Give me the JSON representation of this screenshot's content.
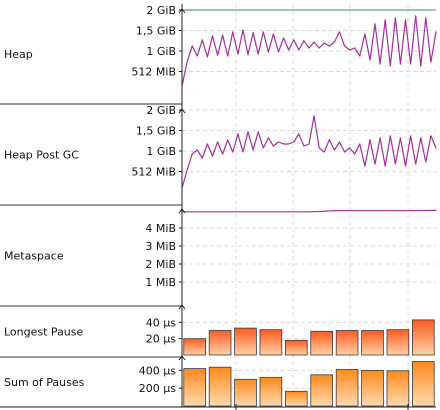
{
  "colors": {
    "line": "#a4309c",
    "limit": "#2e8b57",
    "bar_top": "#ff5a1f",
    "bar_bottom": "#ffd2a8",
    "bar2_top": "#ff8a1a",
    "bar2_bottom": "#ffd9b0",
    "bar_stroke": "#3a3a3a",
    "grid": "#d8d8d8",
    "divider": "#333333",
    "background": "#ffffff",
    "lane_bg": "#f8f8f8"
  },
  "chart_data": [
    {
      "type": "line",
      "lane": "Heap",
      "y_unit": "MiB",
      "ylim": [
        0,
        2048
      ],
      "y_ticks": [
        {
          "value": 2048,
          "label": "2 GiB"
        },
        {
          "value": 1536,
          "label": "1,5 GiB"
        },
        {
          "value": 1024,
          "label": "1 GiB"
        },
        {
          "value": 512,
          "label": "512 MiB"
        }
      ],
      "limit_line": 2048,
      "x": [
        0,
        2,
        4,
        6,
        8,
        10,
        12,
        14,
        16,
        18,
        20,
        22,
        24,
        26,
        28,
        30,
        32,
        34,
        36,
        38,
        40,
        42,
        44,
        46,
        48,
        50,
        52,
        54,
        56,
        58,
        60,
        62,
        64,
        66,
        68,
        70,
        72,
        74,
        76,
        78,
        80,
        82,
        84,
        86,
        88,
        90,
        92,
        94,
        96,
        98,
        100
      ],
      "values": [
        150,
        750,
        1150,
        900,
        1300,
        880,
        1400,
        920,
        1420,
        900,
        1500,
        950,
        1550,
        930,
        1480,
        950,
        1500,
        1000,
        1450,
        1000,
        1350,
        1050,
        1300,
        1050,
        1280,
        1100,
        1250,
        1100,
        1220,
        1150,
        1250,
        1500,
        1150,
        1050,
        1100,
        900,
        1450,
        800,
        1700,
        700,
        1800,
        650,
        1850,
        700,
        1800,
        700,
        1900,
        650,
        1850,
        750,
        1500
      ]
    },
    {
      "type": "line",
      "lane": "Heap Post GC",
      "y_unit": "MiB",
      "ylim": [
        0,
        2048
      ],
      "y_ticks": [
        {
          "value": 2048,
          "label": "2 GiB"
        },
        {
          "value": 1536,
          "label": "1,5 GiB"
        },
        {
          "value": 1024,
          "label": "1 GiB"
        },
        {
          "value": 512,
          "label": "512 MiB"
        }
      ],
      "x": [
        0,
        2,
        4,
        6,
        8,
        10,
        12,
        14,
        16,
        18,
        20,
        22,
        24,
        26,
        28,
        30,
        32,
        34,
        36,
        38,
        40,
        42,
        44,
        46,
        48,
        50,
        52,
        54,
        56,
        58,
        60,
        62,
        64,
        66,
        68,
        70,
        72,
        74,
        76,
        78,
        80,
        82,
        84,
        86,
        88,
        90,
        92,
        94,
        96,
        98,
        100
      ],
      "values": [
        100,
        550,
        950,
        1050,
        850,
        1200,
        900,
        1250,
        950,
        1300,
        1000,
        1450,
        1000,
        1500,
        1050,
        1500,
        1100,
        1350,
        1150,
        1250,
        1200,
        1200,
        1250,
        1450,
        1150,
        1200,
        1900,
        1100,
        1000,
        1300,
        1050,
        1250,
        1000,
        1100,
        950,
        1200,
        650,
        1300,
        700,
        1350,
        650,
        1400,
        700,
        1350,
        650,
        1400,
        700,
        1350,
        750,
        1400,
        1100
      ]
    },
    {
      "type": "line",
      "lane": "Metaspace",
      "y_unit": "MiB",
      "ylim": [
        0,
        5
      ],
      "y_ticks": [
        {
          "value": 4,
          "label": "4 MiB"
        },
        {
          "value": 3,
          "label": "3 MiB"
        },
        {
          "value": 2,
          "label": "2 MiB"
        },
        {
          "value": 1,
          "label": "1 MiB"
        }
      ],
      "x": [
        0,
        10,
        20,
        30,
        40,
        50,
        55,
        60,
        70,
        80,
        90,
        100
      ],
      "values": [
        4.9,
        4.9,
        4.9,
        4.9,
        4.9,
        4.9,
        4.92,
        4.96,
        4.96,
        4.96,
        4.96,
        4.98
      ]
    },
    {
      "type": "bar",
      "lane": "Longest Pause",
      "y_unit": "µs",
      "ylim": [
        0,
        60
      ],
      "y_ticks": [
        {
          "value": 40,
          "label": "40 µs"
        },
        {
          "value": 20,
          "label": "20 µs"
        }
      ],
      "values": [
        20,
        30,
        33,
        31,
        18,
        29,
        30,
        30,
        31,
        43
      ]
    },
    {
      "type": "bar",
      "lane": "Sum of Pauses",
      "y_unit": "µs",
      "ylim": [
        0,
        550
      ],
      "y_ticks": [
        {
          "value": 400,
          "label": "400 µs"
        },
        {
          "value": 200,
          "label": "200 µs"
        }
      ],
      "values": [
        420,
        435,
        300,
        320,
        165,
        350,
        410,
        400,
        395,
        500
      ]
    }
  ]
}
